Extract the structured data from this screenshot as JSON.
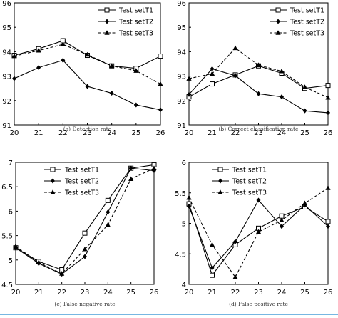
{
  "bottom_rule_color": "#4a9fd8",
  "chart_data": [
    {
      "type": "line",
      "caption": "(a) Detection rate",
      "x": [
        20,
        21,
        22,
        23,
        24,
        25,
        26
      ],
      "xticks": [
        "20",
        "21",
        "22",
        "23",
        "24",
        "25",
        "26"
      ],
      "ylim": [
        91,
        96
      ],
      "yticks": [
        "91",
        "92",
        "93",
        "94",
        "95",
        "96"
      ],
      "legend": "top-right",
      "grid": false,
      "series": [
        {
          "name": "Test setT1",
          "marker": "square",
          "dash": "solid",
          "values": [
            93.85,
            94.12,
            94.45,
            93.85,
            93.42,
            93.32,
            93.82
          ]
        },
        {
          "name": "Test setT2",
          "marker": "diamond",
          "dash": "solid",
          "values": [
            92.9,
            93.35,
            93.65,
            92.58,
            92.3,
            91.82,
            91.62
          ]
        },
        {
          "name": "Test setT3",
          "marker": "triangle",
          "dash": "dashed",
          "values": [
            93.82,
            94.05,
            94.3,
            93.88,
            93.42,
            93.22,
            92.68
          ]
        }
      ]
    },
    {
      "type": "line",
      "caption": "(b) Correct classification rate",
      "x": [
        20,
        21,
        22,
        23,
        24,
        25,
        26
      ],
      "xticks": [
        "20",
        "21",
        "22",
        "23",
        "24",
        "25",
        "26"
      ],
      "ylim": [
        91,
        96
      ],
      "yticks": [
        "91",
        "92",
        "93",
        "94",
        "95",
        "96"
      ],
      "legend": "top-right",
      "grid": false,
      "series": [
        {
          "name": "Test setT1",
          "marker": "square",
          "dash": "solid",
          "values": [
            92.15,
            92.68,
            93.05,
            93.42,
            93.12,
            92.5,
            92.62
          ]
        },
        {
          "name": "Test setT2",
          "marker": "diamond",
          "dash": "solid",
          "values": [
            92.25,
            93.3,
            93.02,
            92.28,
            92.15,
            91.58,
            91.5
          ]
        },
        {
          "name": "Test setT3",
          "marker": "triangle",
          "dash": "dashed",
          "values": [
            92.9,
            93.1,
            94.15,
            93.45,
            93.2,
            92.55,
            92.12
          ]
        }
      ]
    },
    {
      "type": "line",
      "caption": "(c) False negative rate",
      "x": [
        20,
        21,
        22,
        23,
        24,
        25,
        26
      ],
      "xticks": [
        "20",
        "21",
        "22",
        "23",
        "24",
        "25",
        "26"
      ],
      "ylim": [
        4.5,
        7
      ],
      "yticks": [
        "4.5",
        "5",
        "5.5",
        "6",
        "6.5",
        "7"
      ],
      "legend": "top-left",
      "grid": false,
      "series": [
        {
          "name": "Test setT1",
          "marker": "square",
          "dash": "solid",
          "values": [
            5.25,
            4.97,
            4.8,
            5.55,
            6.22,
            6.88,
            6.95
          ]
        },
        {
          "name": "Test setT2",
          "marker": "diamond",
          "dash": "solid",
          "values": [
            5.25,
            4.93,
            4.71,
            5.07,
            5.98,
            6.88,
            6.83
          ]
        },
        {
          "name": "Test setT3",
          "marker": "triangle",
          "dash": "dashed",
          "values": [
            5.28,
            4.95,
            4.72,
            5.22,
            5.72,
            6.66,
            6.88
          ]
        }
      ]
    },
    {
      "type": "line",
      "caption": "(d) False positive rate",
      "x": [
        20,
        21,
        22,
        23,
        24,
        25,
        26
      ],
      "xticks": [
        "20",
        "21",
        "22",
        "23",
        "24",
        "25",
        "26"
      ],
      "ylim": [
        4,
        6
      ],
      "yticks": [
        "4",
        "4.5",
        "5",
        "5.5",
        "6"
      ],
      "legend": "top-left",
      "grid": false,
      "series": [
        {
          "name": "Test setT1",
          "marker": "square",
          "dash": "solid",
          "values": [
            5.32,
            4.15,
            4.65,
            4.92,
            5.12,
            5.27,
            5.03
          ]
        },
        {
          "name": "Test setT2",
          "marker": "diamond",
          "dash": "solid",
          "values": [
            5.28,
            4.27,
            4.7,
            5.38,
            4.95,
            5.3,
            4.95
          ]
        },
        {
          "name": "Test setT3",
          "marker": "triangle",
          "dash": "dashed",
          "values": [
            5.42,
            4.65,
            4.12,
            4.86,
            5.05,
            5.33,
            5.58
          ]
        }
      ]
    }
  ]
}
